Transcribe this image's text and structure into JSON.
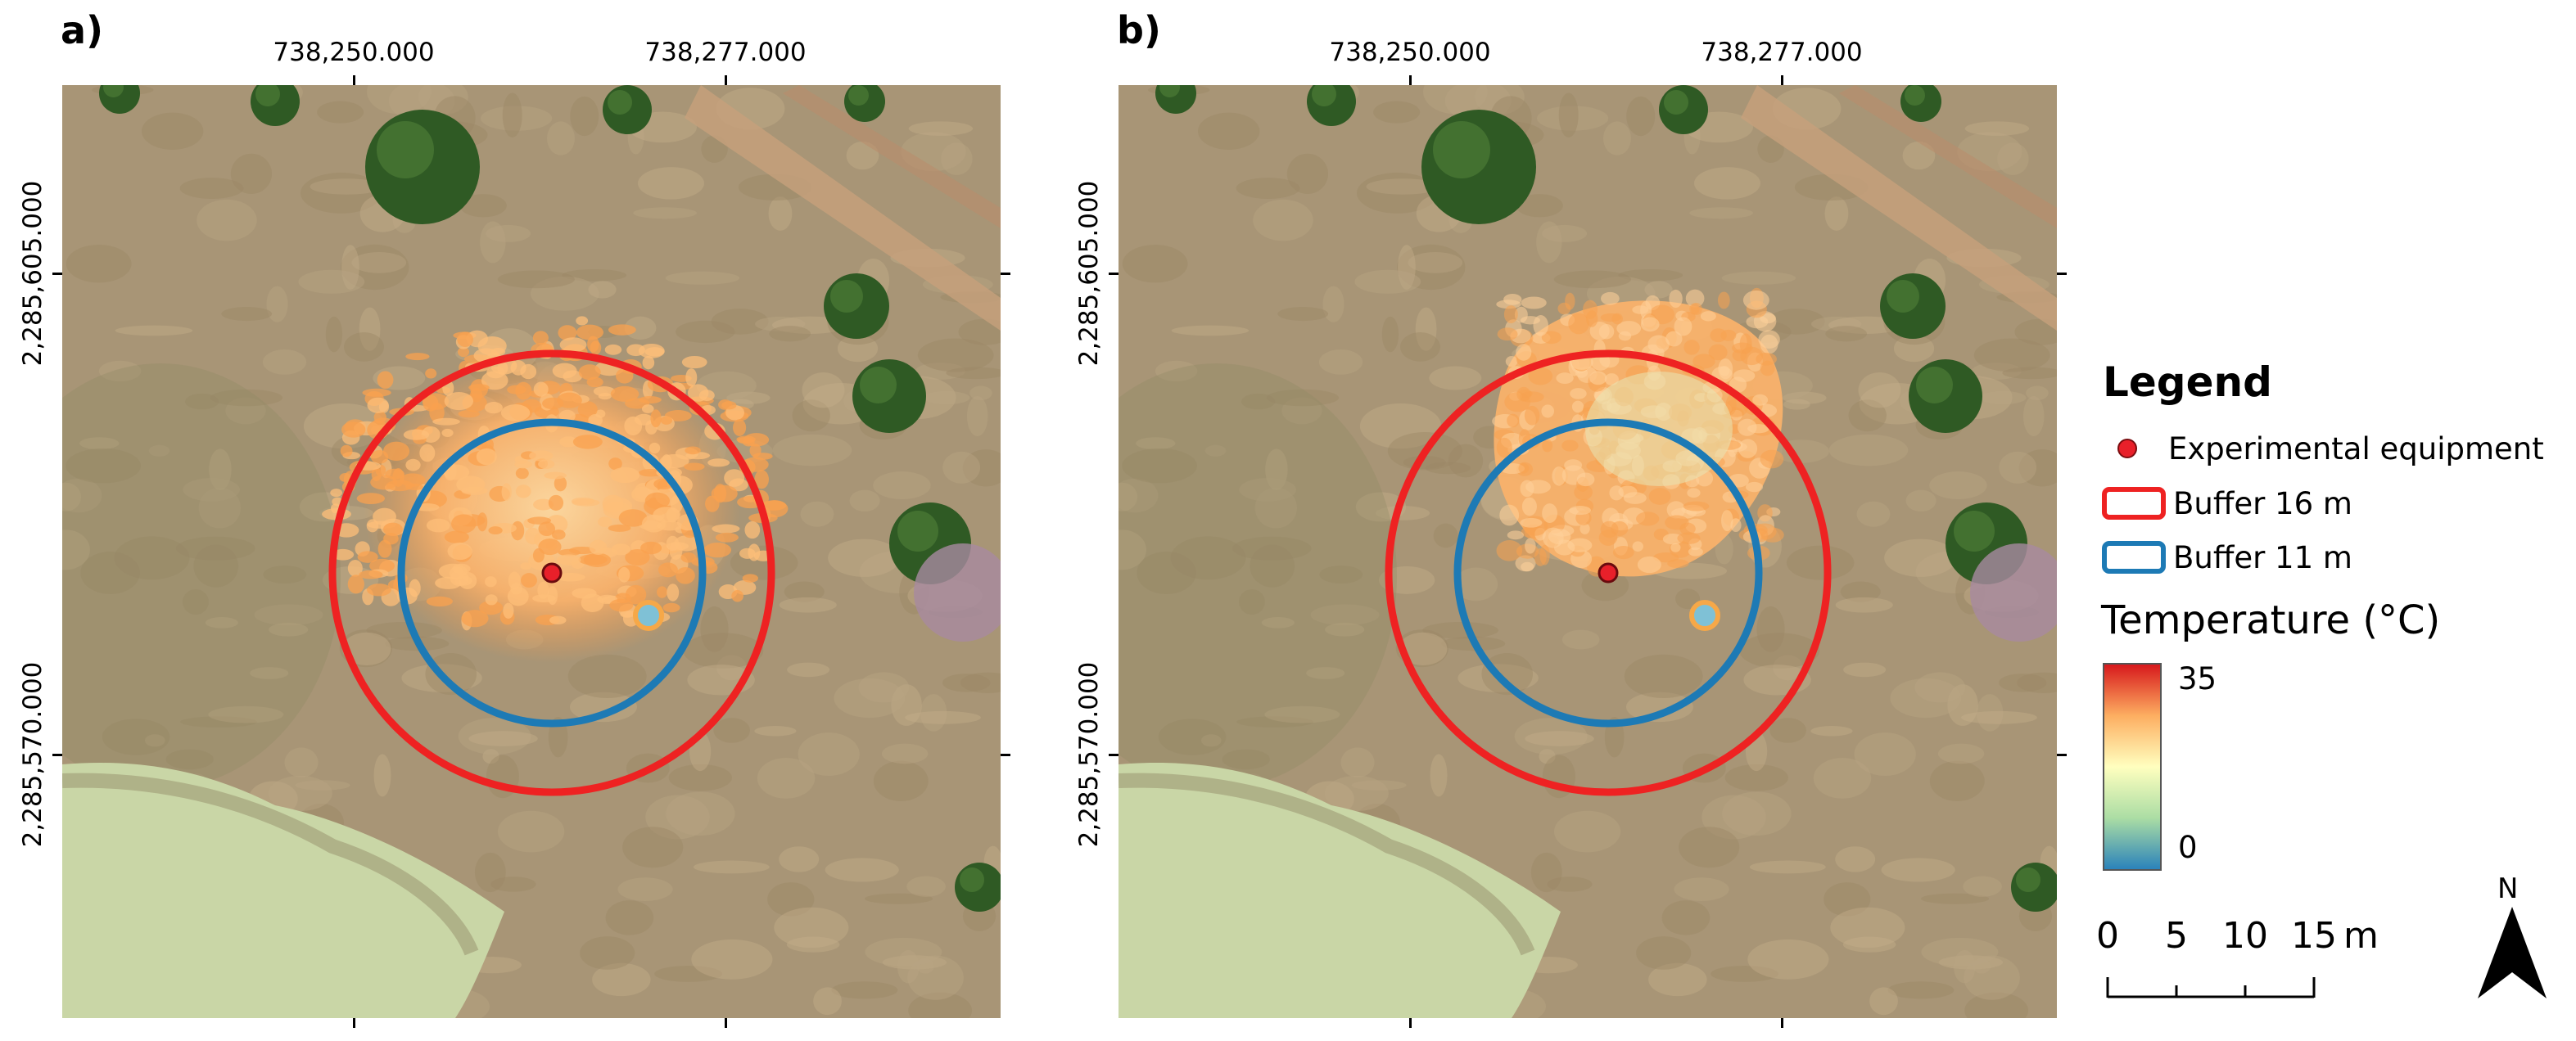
{
  "panels": [
    {
      "label": "a)",
      "plume_variant": "diffuse"
    },
    {
      "label": "b)",
      "plume_variant": "compact"
    }
  ],
  "x_coords": [
    "738,250.000",
    "738,277.000"
  ],
  "y_coords": [
    "2,285,605.000",
    "2,285,570.000"
  ],
  "legend": {
    "title": "Legend",
    "items": [
      {
        "label": "Experimental equipment",
        "symbol": "point",
        "color": "#e8202a"
      },
      {
        "label": "Buffer 16 m",
        "symbol": "ring",
        "color": "#ee2222"
      },
      {
        "label": "Buffer 11 m",
        "symbol": "ring",
        "color": "#1d7ab5"
      }
    ]
  },
  "temperature": {
    "title": "Temperature (°C)",
    "max_label": "35",
    "min_label": "0",
    "ramp_colors": [
      "#d7191c",
      "#fdae61",
      "#ffffbf",
      "#abdda4",
      "#2b83ba"
    ]
  },
  "scale_bar": {
    "labels": [
      "0",
      "5",
      "10",
      "15"
    ],
    "unit": "m"
  },
  "north_arrow": {
    "label": "N"
  },
  "colors": {
    "buffer_16": "#ee2222",
    "buffer_11": "#1d7ab5",
    "equipment": "#e8202a",
    "ground": "#a89576",
    "water": "#c9d6a6",
    "tree": "#2f5a24"
  }
}
